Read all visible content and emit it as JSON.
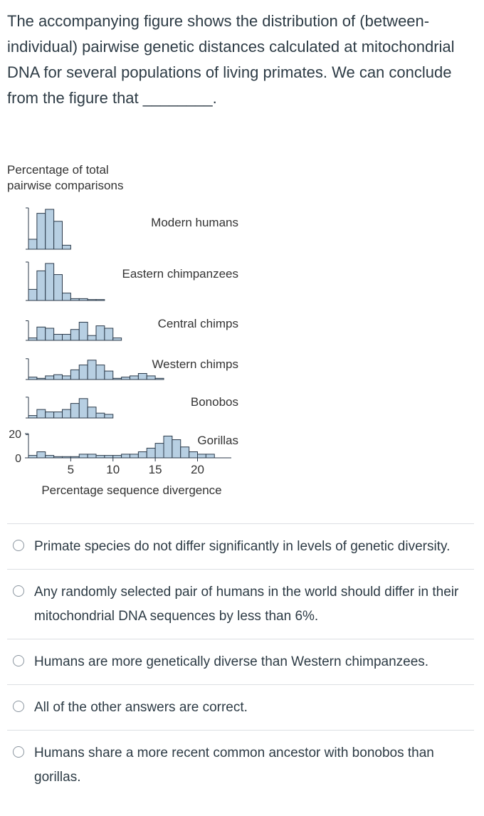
{
  "question": {
    "text": "The accompanying figure shows the distribution of (between-individual) pairwise genetic distances calculated at mitochondrial DNA for several populations of living primates. We can conclude from the figure that ________."
  },
  "chart_data": {
    "type": "bar",
    "title": "",
    "ylabel": "Percentage of total pairwise comparisons",
    "xlabel": "Percentage sequence divergence",
    "x_ticks": [
      "5",
      "10",
      "15",
      "20"
    ],
    "x_tick_values": [
      5,
      10,
      15,
      20
    ],
    "y_ticks": [
      "20",
      "0"
    ],
    "y_tick_values": [
      20,
      0
    ],
    "xlim": [
      0,
      24
    ],
    "ylim": [
      0,
      20
    ],
    "bin_width": 1,
    "series": [
      {
        "name": "Modern humans",
        "bins_start": 0,
        "values": [
          5,
          18,
          20,
          14,
          2
        ]
      },
      {
        "name": "Eastern chimpanzees",
        "bins_start": 0,
        "values": [
          6,
          16,
          20,
          14,
          4,
          1,
          1,
          0.5,
          0.5
        ]
      },
      {
        "name": "Central chimps",
        "bins_start": 0,
        "values": [
          2,
          11,
          10,
          5,
          5,
          9,
          15,
          4,
          12,
          10,
          2
        ]
      },
      {
        "name": "Western chimps",
        "bins_start": 0,
        "values": [
          2,
          1,
          3,
          4,
          3,
          8,
          12,
          16,
          12,
          7,
          1,
          2,
          3,
          5,
          3,
          1
        ]
      },
      {
        "name": "Bonobos",
        "bins_start": 0,
        "values": [
          2,
          7,
          5,
          5,
          7,
          12,
          16,
          9,
          4,
          3
        ]
      },
      {
        "name": "Gorillas",
        "bins_start": 0,
        "values": [
          2,
          5,
          2,
          1,
          1,
          1,
          3,
          3,
          2,
          2,
          2,
          3,
          3,
          5,
          8,
          12,
          18,
          15,
          9,
          5,
          3,
          3
        ]
      }
    ]
  },
  "answers": [
    {
      "text": "Primate species do not differ significantly in levels of genetic diversity."
    },
    {
      "text": "Any randomly selected pair of humans in the world should differ in their mitochondrial DNA sequences by less than 6%."
    },
    {
      "text": "Humans are more genetically diverse than Western chimpanzees."
    },
    {
      "text": "All of the other answers are correct."
    },
    {
      "text": "Humans share a more recent common ancestor with bonobos than gorillas."
    }
  ]
}
